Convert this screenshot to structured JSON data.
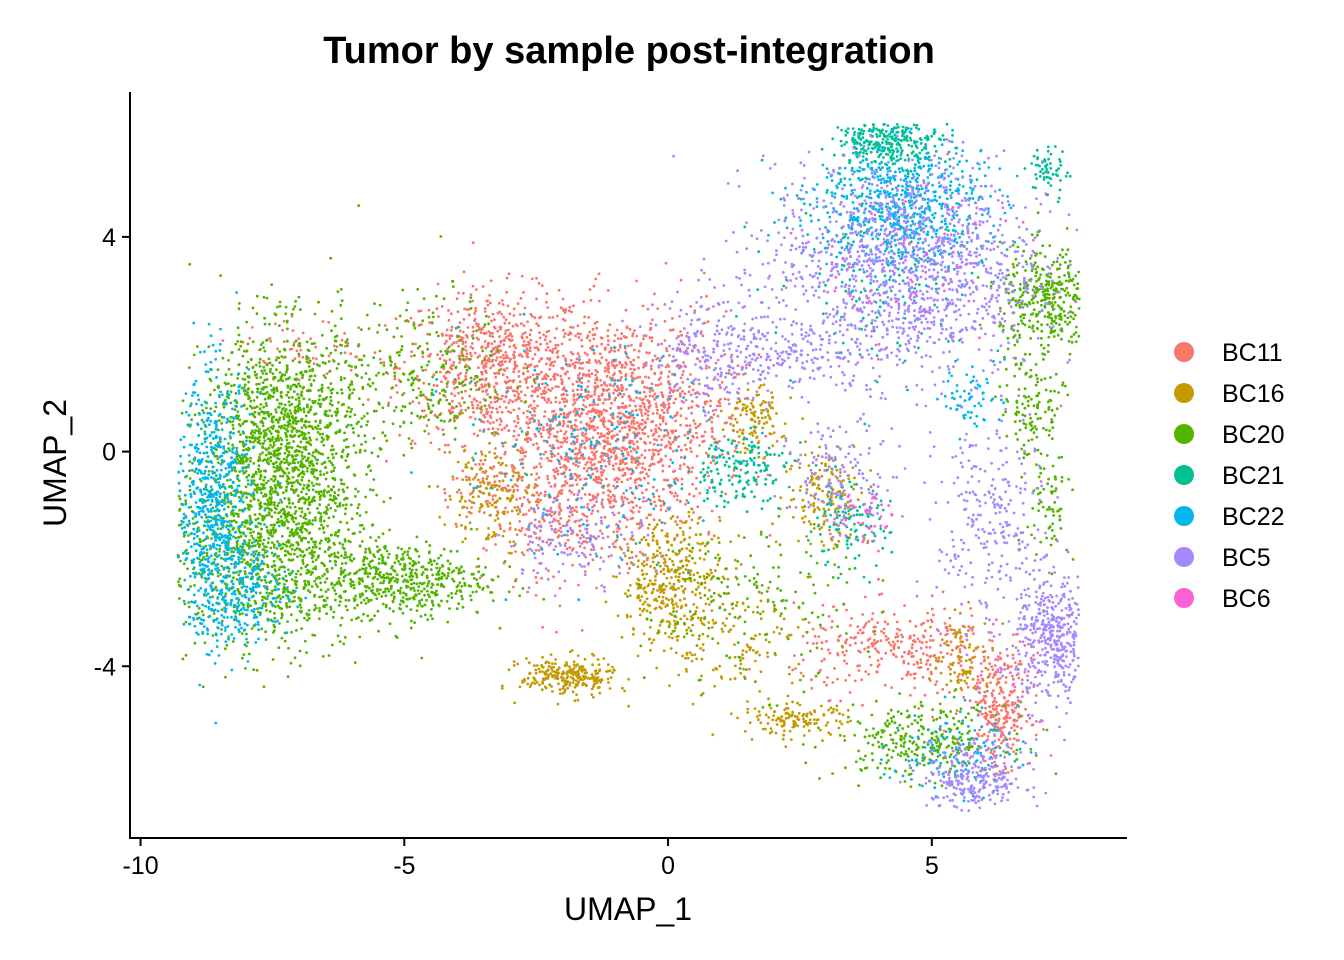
{
  "chart_data": {
    "type": "scatter",
    "title": "Tumor by sample post-integration",
    "xlabel": "UMAP_1",
    "ylabel": "UMAP_2",
    "xlim": [
      -10.2,
      8.7
    ],
    "ylim": [
      -7.2,
      6.7
    ],
    "xticks": [
      -10,
      -5,
      0,
      5
    ],
    "xtick_labels": [
      "-10",
      "-5",
      "0",
      "5"
    ],
    "yticks": [
      -4,
      0,
      4
    ],
    "ytick_labels": [
      "-4",
      "0",
      "4"
    ],
    "grid": false,
    "legend_position": "right",
    "series": [
      {
        "name": "BC11",
        "color": "#F8766D",
        "clusters": [
          {
            "cx": -3.3,
            "cy": 1.6,
            "sx": 0.9,
            "sy": 0.7,
            "n": 700
          },
          {
            "cx": -0.9,
            "cy": 0.6,
            "sx": 1.0,
            "sy": 1.0,
            "n": 1400
          },
          {
            "cx": -2.2,
            "cy": -0.6,
            "sx": 0.9,
            "sy": 0.9,
            "n": 500
          },
          {
            "cx": -7.0,
            "cy": 1.9,
            "sx": 0.6,
            "sy": 0.3,
            "n": 60
          },
          {
            "cx": 4.4,
            "cy": -3.7,
            "sx": 1.0,
            "sy": 0.4,
            "n": 320
          },
          {
            "cx": 6.3,
            "cy": -4.8,
            "sx": 0.3,
            "sy": 0.5,
            "n": 260
          }
        ]
      },
      {
        "name": "BC16",
        "color": "#C49A00",
        "clusters": [
          {
            "cx": -1.9,
            "cy": -4.2,
            "sx": 0.45,
            "sy": 0.18,
            "n": 260
          },
          {
            "cx": 0.1,
            "cy": -2.4,
            "sx": 0.5,
            "sy": 0.6,
            "n": 380
          },
          {
            "cx": -3.4,
            "cy": -0.8,
            "sx": 0.4,
            "sy": 0.5,
            "n": 160
          },
          {
            "cx": 1.6,
            "cy": 0.6,
            "sx": 0.3,
            "sy": 0.3,
            "n": 110
          },
          {
            "cx": 2.4,
            "cy": -5.0,
            "sx": 0.5,
            "sy": 0.15,
            "n": 130
          },
          {
            "cx": 3.0,
            "cy": -0.8,
            "sx": 0.4,
            "sy": 0.5,
            "n": 160
          },
          {
            "cx": 5.6,
            "cy": -3.9,
            "sx": 0.3,
            "sy": 0.4,
            "n": 90
          },
          {
            "cx": 1.4,
            "cy": -3.6,
            "sx": 0.7,
            "sy": 0.6,
            "n": 120
          }
        ]
      },
      {
        "name": "BC20",
        "color": "#53B400",
        "clusters": [
          {
            "cx": -7.3,
            "cy": 0.3,
            "sx": 0.75,
            "sy": 1.0,
            "n": 1300
          },
          {
            "cx": -7.5,
            "cy": -1.9,
            "sx": 1.0,
            "sy": 0.9,
            "n": 1100
          },
          {
            "cx": -5.0,
            "cy": -2.4,
            "sx": 0.8,
            "sy": 0.35,
            "n": 450
          },
          {
            "cx": -4.6,
            "cy": 1.5,
            "sx": 0.8,
            "sy": 0.7,
            "n": 250
          },
          {
            "cx": 7.2,
            "cy": 2.8,
            "sx": 0.45,
            "sy": 0.5,
            "n": 380
          },
          {
            "cx": 4.8,
            "cy": -5.4,
            "sx": 0.8,
            "sy": 0.35,
            "n": 300
          },
          {
            "cx": 6.9,
            "cy": 0.8,
            "sx": 0.3,
            "sy": 0.5,
            "n": 110
          },
          {
            "cx": 7.2,
            "cy": -1.0,
            "sx": 0.2,
            "sy": 0.7,
            "n": 80
          },
          {
            "cx": 1.5,
            "cy": -2.8,
            "sx": 1.0,
            "sy": 0.8,
            "n": 180
          }
        ]
      },
      {
        "name": "BC21",
        "color": "#00C094",
        "clusters": [
          {
            "cx": 4.2,
            "cy": 5.8,
            "sx": 0.5,
            "sy": 0.25,
            "n": 320
          },
          {
            "cx": 7.2,
            "cy": 5.2,
            "sx": 0.18,
            "sy": 0.25,
            "n": 60
          },
          {
            "cx": 1.3,
            "cy": -0.3,
            "sx": 0.5,
            "sy": 0.35,
            "n": 160
          },
          {
            "cx": 3.4,
            "cy": -1.4,
            "sx": 0.4,
            "sy": 0.4,
            "n": 110
          },
          {
            "cx": 4.1,
            "cy": 3.5,
            "sx": 1.1,
            "sy": 0.9,
            "n": 180
          }
        ]
      },
      {
        "name": "BC22",
        "color": "#00B6EB",
        "clusters": [
          {
            "cx": -8.6,
            "cy": -1.0,
            "sx": 0.35,
            "sy": 1.2,
            "n": 650
          },
          {
            "cx": -8.1,
            "cy": -2.6,
            "sx": 0.5,
            "sy": 0.5,
            "n": 250
          },
          {
            "cx": 4.4,
            "cy": 4.6,
            "sx": 0.8,
            "sy": 0.6,
            "n": 650
          },
          {
            "cx": -1.5,
            "cy": 0.0,
            "sx": 1.2,
            "sy": 1.0,
            "n": 200
          },
          {
            "cx": 5.4,
            "cy": -5.6,
            "sx": 0.6,
            "sy": 0.4,
            "n": 110
          },
          {
            "cx": 5.8,
            "cy": 1.0,
            "sx": 0.3,
            "sy": 0.3,
            "n": 60
          }
        ]
      },
      {
        "name": "BC5",
        "color": "#A58AFF",
        "clusters": [
          {
            "cx": 4.5,
            "cy": 3.4,
            "sx": 1.3,
            "sy": 1.0,
            "n": 1300
          },
          {
            "cx": 0.9,
            "cy": 1.9,
            "sx": 0.6,
            "sy": 0.6,
            "n": 230
          },
          {
            "cx": 7.3,
            "cy": -3.5,
            "sx": 0.35,
            "sy": 0.6,
            "n": 420
          },
          {
            "cx": 5.8,
            "cy": -6.1,
            "sx": 0.5,
            "sy": 0.35,
            "n": 280
          },
          {
            "cx": 6.1,
            "cy": -1.4,
            "sx": 0.5,
            "sy": 1.1,
            "n": 260
          },
          {
            "cx": 3.3,
            "cy": -0.5,
            "sx": 0.5,
            "sy": 0.5,
            "n": 140
          },
          {
            "cx": -1.7,
            "cy": -1.6,
            "sx": 0.7,
            "sy": 0.4,
            "n": 130
          },
          {
            "cx": 2.5,
            "cy": 1.8,
            "sx": 0.8,
            "sy": 0.3,
            "n": 140
          }
        ]
      },
      {
        "name": "BC6",
        "color": "#FB61D7",
        "clusters": [
          {
            "cx": 3.7,
            "cy": -1.2,
            "sx": 0.3,
            "sy": 0.3,
            "n": 40
          },
          {
            "cx": 4.5,
            "cy": 3.6,
            "sx": 1.1,
            "sy": 0.9,
            "n": 70
          },
          {
            "cx": 5.9,
            "cy": -4.4,
            "sx": 0.6,
            "sy": 0.6,
            "n": 30
          }
        ]
      }
    ]
  }
}
